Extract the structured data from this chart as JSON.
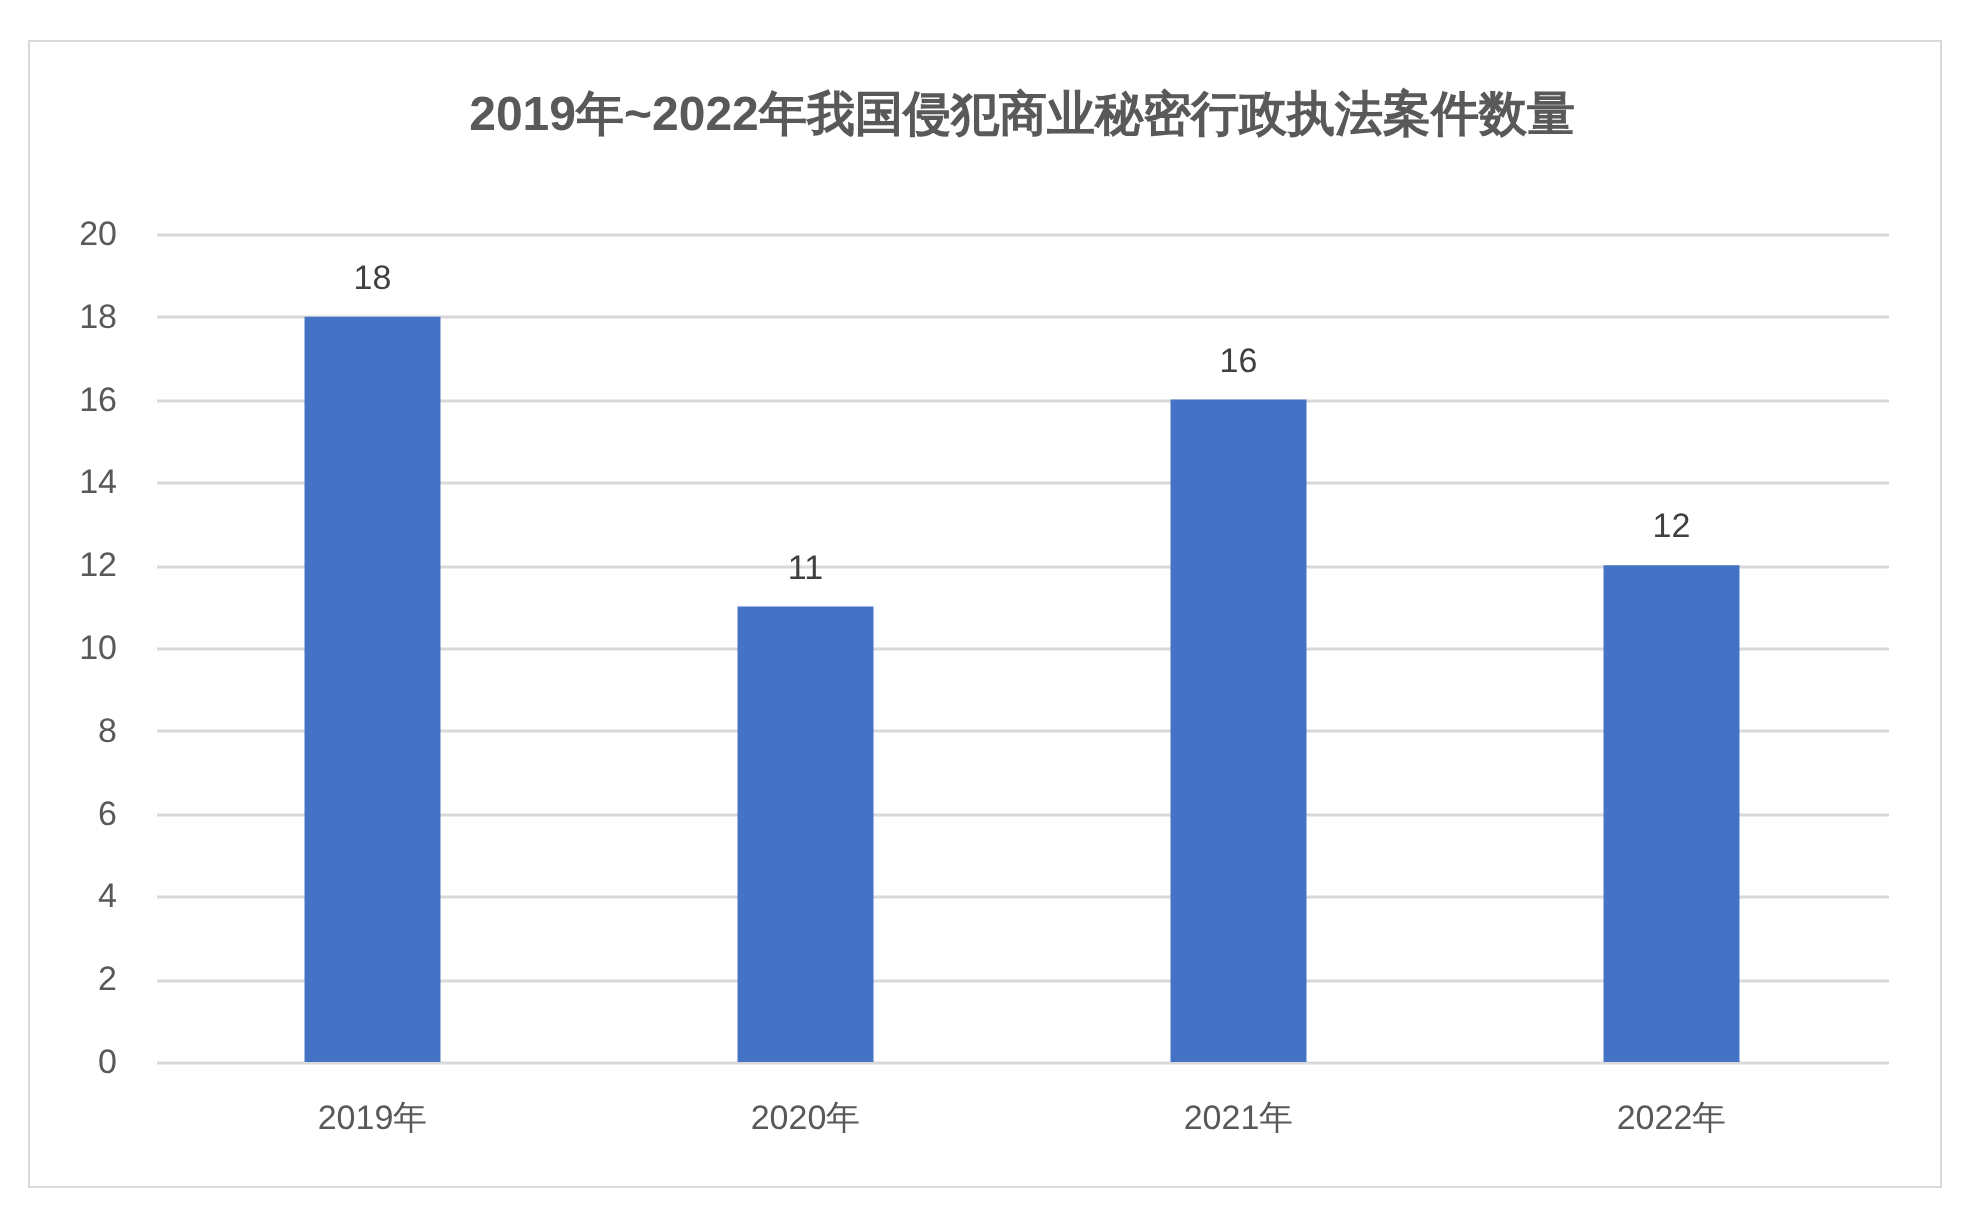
{
  "chart_data": {
    "type": "bar",
    "title": "2019年~2022年我国侵犯商业秘密行政执法案件数量",
    "categories": [
      "2019年",
      "2020年",
      "2021年",
      "2022年"
    ],
    "values": [
      18,
      11,
      16,
      12
    ],
    "color": "#4472c4",
    "ylim": [
      0,
      20
    ],
    "yticks": [
      0,
      2,
      4,
      6,
      8,
      10,
      12,
      14,
      16,
      18,
      20
    ],
    "grid": "y",
    "data_labels": true
  }
}
